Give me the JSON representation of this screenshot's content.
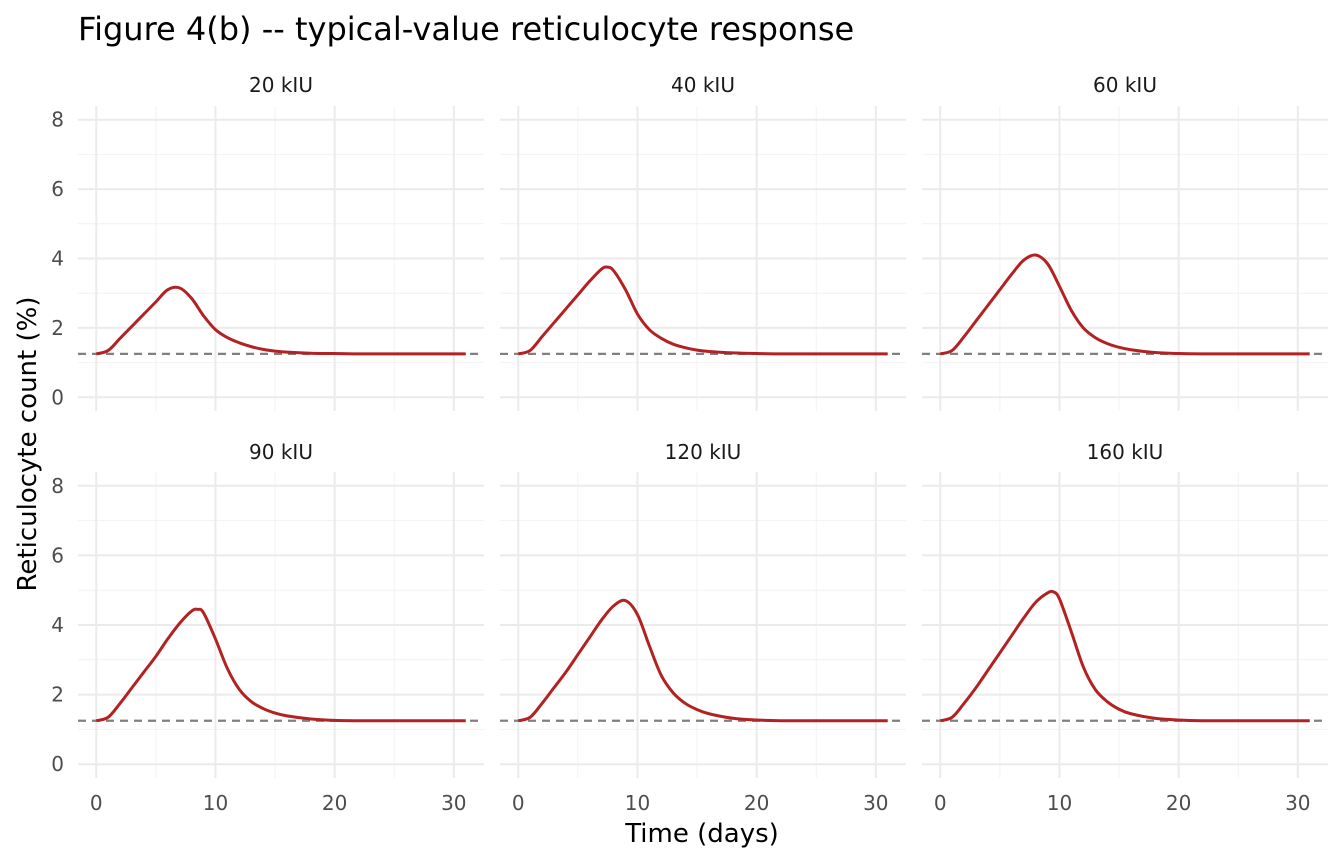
{
  "chart_data": {
    "type": "line",
    "title": "Figure 4(b) -- typical-value reticulocyte response",
    "xlabel": "Time (days)",
    "ylabel": "Reticulocyte count (%)",
    "xlim": [
      0,
      31
    ],
    "ylim": [
      0,
      8
    ],
    "x_ticks": [
      0,
      10,
      20,
      30
    ],
    "y_ticks": [
      0,
      2,
      4,
      6,
      8
    ],
    "grid": true,
    "facet_layout": "2 rows x 3 columns",
    "baseline": 1.25,
    "colors": {
      "response": "#b22222",
      "baseline": "#808080",
      "grid": "#ebebeb"
    },
    "panels": [
      {
        "label": "20 kIU",
        "x": [
          0,
          1,
          2,
          3,
          4,
          5,
          6,
          7,
          8,
          9,
          10,
          11,
          12,
          13,
          14,
          15,
          16,
          18,
          20,
          22,
          25,
          28,
          31
        ],
        "y": [
          1.25,
          1.35,
          1.7,
          2.05,
          2.4,
          2.75,
          3.1,
          3.15,
          2.85,
          2.35,
          1.95,
          1.72,
          1.57,
          1.46,
          1.38,
          1.33,
          1.3,
          1.27,
          1.26,
          1.25,
          1.25,
          1.25,
          1.25
        ]
      },
      {
        "label": "40 kIU",
        "x": [
          0,
          1,
          2,
          3,
          4,
          5,
          6,
          7,
          7.5,
          8,
          9,
          10,
          11,
          12,
          13,
          14,
          15,
          16,
          18,
          20,
          22,
          25,
          28,
          31
        ],
        "y": [
          1.25,
          1.35,
          1.75,
          2.15,
          2.55,
          2.95,
          3.35,
          3.7,
          3.75,
          3.65,
          3.1,
          2.4,
          1.95,
          1.7,
          1.53,
          1.43,
          1.36,
          1.32,
          1.28,
          1.26,
          1.25,
          1.25,
          1.25,
          1.25
        ]
      },
      {
        "label": "60 kIU",
        "x": [
          0,
          1,
          2,
          3,
          4,
          5,
          6,
          7,
          8,
          9,
          10,
          11,
          12,
          13,
          14,
          15,
          16,
          18,
          20,
          22,
          25,
          28,
          31
        ],
        "y": [
          1.25,
          1.35,
          1.75,
          2.2,
          2.65,
          3.1,
          3.55,
          3.95,
          4.1,
          3.85,
          3.2,
          2.5,
          2.0,
          1.72,
          1.55,
          1.44,
          1.37,
          1.29,
          1.26,
          1.25,
          1.25,
          1.25,
          1.25
        ]
      },
      {
        "label": "90 kIU",
        "x": [
          0,
          1,
          2,
          3,
          4,
          5,
          6,
          7,
          8,
          8.5,
          9,
          10,
          11,
          12,
          13,
          14,
          15,
          16,
          18,
          20,
          22,
          25,
          28,
          31
        ],
        "y": [
          1.25,
          1.35,
          1.75,
          2.2,
          2.65,
          3.1,
          3.6,
          4.05,
          4.4,
          4.45,
          4.35,
          3.6,
          2.75,
          2.15,
          1.8,
          1.6,
          1.47,
          1.39,
          1.3,
          1.26,
          1.25,
          1.25,
          1.25,
          1.25
        ]
      },
      {
        "label": "120 kIU",
        "x": [
          0,
          1,
          2,
          3,
          4,
          5,
          6,
          7,
          8,
          9,
          10,
          11,
          12,
          13,
          14,
          15,
          16,
          18,
          20,
          22,
          25,
          28,
          31
        ],
        "y": [
          1.25,
          1.35,
          1.75,
          2.2,
          2.65,
          3.15,
          3.65,
          4.15,
          4.55,
          4.7,
          4.3,
          3.4,
          2.55,
          2.05,
          1.75,
          1.57,
          1.45,
          1.32,
          1.27,
          1.25,
          1.25,
          1.25,
          1.25
        ]
      },
      {
        "label": "160 kIU",
        "x": [
          0,
          1,
          2,
          3,
          4,
          5,
          6,
          7,
          8,
          9,
          9.5,
          10,
          11,
          12,
          13,
          14,
          15,
          16,
          18,
          20,
          22,
          25,
          28,
          31
        ],
        "y": [
          1.25,
          1.35,
          1.75,
          2.2,
          2.7,
          3.2,
          3.7,
          4.2,
          4.65,
          4.92,
          4.95,
          4.75,
          3.8,
          2.8,
          2.15,
          1.8,
          1.58,
          1.45,
          1.32,
          1.27,
          1.25,
          1.25,
          1.25,
          1.25
        ]
      }
    ]
  }
}
